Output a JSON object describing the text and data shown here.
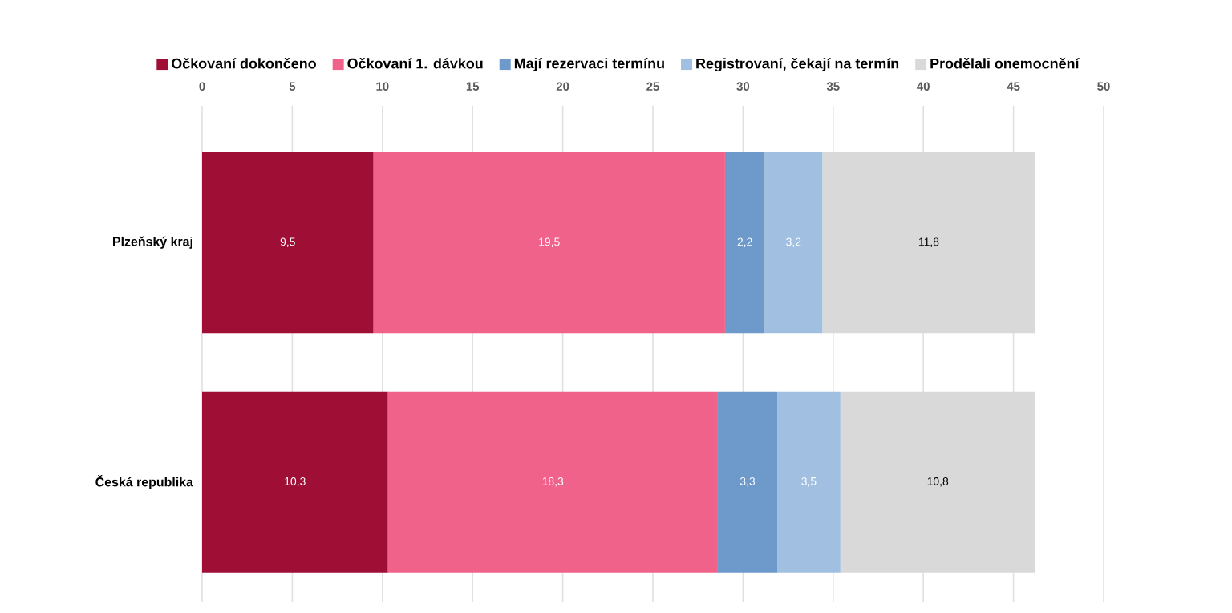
{
  "chart_data": {
    "type": "bar",
    "orientation": "horizontal",
    "stacked": true,
    "categories": [
      "Plzeňský kraj",
      "Česká republika"
    ],
    "series": [
      {
        "name": "Očkovaní dokončeno",
        "color": "#9e0e35",
        "values": [
          9.5,
          10.3
        ],
        "value_labels": [
          "9,5",
          "10,3"
        ]
      },
      {
        "name": "Očkovaní 1. dávkou",
        "color": "#f0628a",
        "values": [
          19.5,
          18.3
        ],
        "value_labels": [
          "19,5",
          "18,3"
        ]
      },
      {
        "name": "Mají rezervaci termínu",
        "color": "#6d9acb",
        "values": [
          2.2,
          3.3
        ],
        "value_labels": [
          "2,2",
          "3,3"
        ]
      },
      {
        "name": "Registrovaní, čekají na termín",
        "color": "#a1bfe0",
        "values": [
          3.2,
          3.5
        ],
        "value_labels": [
          "3,2",
          "3,5"
        ]
      },
      {
        "name": "Prodělali onemocnění",
        "color": "#d9d9d9",
        "values": [
          11.8,
          10.8
        ],
        "value_labels": [
          "11,8",
          "10,8"
        ]
      }
    ],
    "xlim": [
      0,
      50
    ],
    "xticks": [
      0,
      5,
      10,
      15,
      20,
      25,
      30,
      35,
      40,
      45,
      50
    ],
    "grid": "x",
    "legend": "top"
  }
}
